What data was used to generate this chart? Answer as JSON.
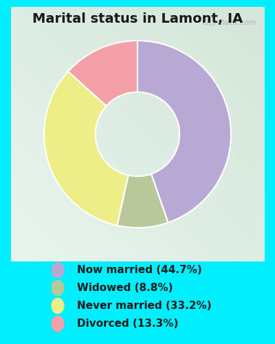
{
  "title": "Marital status in Lamont, IA",
  "slices": [
    44.7,
    8.8,
    33.2,
    13.3
  ],
  "colors": [
    "#b8a9d4",
    "#b8c89a",
    "#eeee88",
    "#f4a0a8"
  ],
  "labels": [
    "Now married (44.7%)",
    "Widowed (8.8%)",
    "Never married (33.2%)",
    "Divorced (13.3%)"
  ],
  "legend_colors": [
    "#b8a9d4",
    "#b8c89a",
    "#eeee88",
    "#f4a0a8"
  ],
  "fig_bg": "#00eeff",
  "chart_bg_top": "#e8f5ee",
  "chart_bg_bottom": "#d0ead8",
  "title_fontsize": 14,
  "legend_fontsize": 11,
  "watermark": "City-Data.com",
  "donut_width": 0.55,
  "startangle": 90
}
